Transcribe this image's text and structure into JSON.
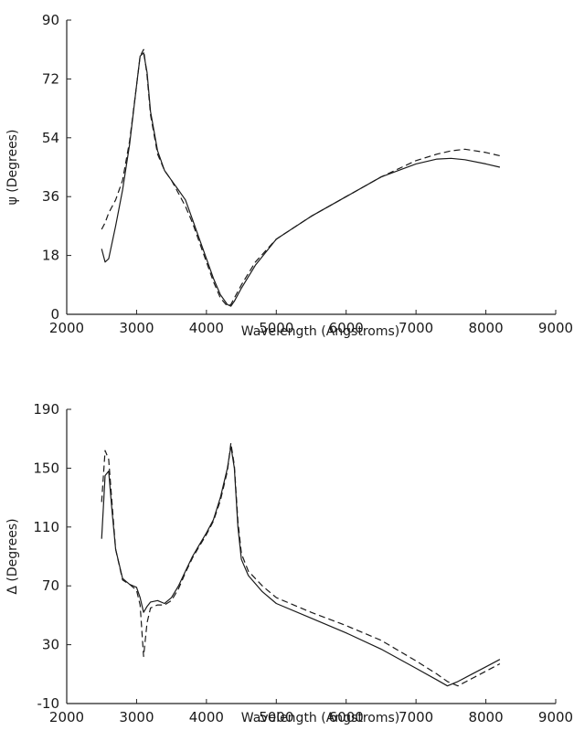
{
  "chart_data": [
    {
      "type": "line",
      "xlabel": "Wavelength (Angstroms)",
      "ylabel": "ψ (Degrees)",
      "xlim": [
        2000,
        9000
      ],
      "ylim": [
        0,
        90
      ],
      "xticks": [
        2000,
        3000,
        4000,
        5000,
        6000,
        7000,
        8000,
        9000
      ],
      "yticks": [
        0,
        18,
        36,
        54,
        72,
        90
      ],
      "grid": false,
      "series": [
        {
          "style": "solid",
          "x": [
            2500,
            2550,
            2600,
            2700,
            2800,
            2900,
            3000,
            3050,
            3100,
            3150,
            3200,
            3300,
            3400,
            3500,
            3600,
            3700,
            3800,
            3900,
            4000,
            4100,
            4200,
            4300,
            4350,
            4400,
            4500,
            4700,
            5000,
            5500,
            6000,
            6500,
            7000,
            7300,
            7500,
            7700,
            8000,
            8200
          ],
          "y": [
            20,
            16,
            17,
            27,
            38,
            52,
            70,
            79,
            80,
            74,
            62,
            50,
            44,
            41,
            38,
            35,
            29,
            23,
            17,
            11,
            6,
            3,
            2.5,
            4,
            8,
            15,
            23,
            30,
            36,
            42,
            46,
            47.5,
            47.7,
            47.3,
            46,
            45
          ]
        },
        {
          "style": "dashed",
          "x": [
            2500,
            2550,
            2600,
            2700,
            2800,
            2900,
            3000,
            3050,
            3100,
            3150,
            3200,
            3300,
            3400,
            3500,
            3600,
            3700,
            3800,
            3900,
            4000,
            4100,
            4200,
            4300,
            4350,
            4400,
            4500,
            4700,
            5000,
            5500,
            6000,
            6500,
            7000,
            7300,
            7500,
            7700,
            8000,
            8200
          ],
          "y": [
            26,
            28,
            31,
            35,
            41,
            53,
            70,
            79,
            81,
            73,
            61,
            49,
            44,
            41,
            37,
            33,
            28,
            22,
            16,
            10,
            5,
            2.5,
            3,
            5,
            9,
            16,
            23,
            30,
            36,
            42,
            47,
            49,
            50,
            50.5,
            49.5,
            48.5
          ]
        }
      ]
    },
    {
      "type": "line",
      "xlabel": "Wavelength (Angstroms)",
      "ylabel": "Δ (Degrees)",
      "xlim": [
        2000,
        9000
      ],
      "ylim": [
        -10,
        190
      ],
      "xticks": [
        2000,
        3000,
        4000,
        5000,
        6000,
        7000,
        8000,
        9000
      ],
      "yticks": [
        -10,
        30,
        70,
        110,
        150,
        190
      ],
      "grid": false,
      "series": [
        {
          "style": "solid",
          "x": [
            2500,
            2550,
            2600,
            2650,
            2700,
            2800,
            2900,
            3000,
            3050,
            3100,
            3150,
            3200,
            3300,
            3400,
            3500,
            3600,
            3700,
            3800,
            3900,
            4000,
            4100,
            4200,
            4300,
            4350,
            4400,
            4450,
            4500,
            4600,
            4800,
            5000,
            5500,
            6000,
            6500,
            7000,
            7300,
            7450,
            7600,
            7800,
            8000,
            8200
          ],
          "y": [
            102,
            145,
            148,
            120,
            95,
            75,
            71,
            69,
            62,
            52,
            56,
            59,
            60,
            58,
            62,
            70,
            80,
            90,
            98,
            106,
            115,
            130,
            150,
            165,
            150,
            110,
            88,
            77,
            66,
            58,
            48,
            38,
            27,
            14,
            6,
            2,
            5,
            10,
            15,
            20
          ]
        },
        {
          "style": "dashed",
          "x": [
            2500,
            2550,
            2600,
            2650,
            2700,
            2800,
            2900,
            3000,
            3050,
            3100,
            3150,
            3200,
            3300,
            3400,
            3500,
            3600,
            3700,
            3800,
            3900,
            4000,
            4100,
            4200,
            4300,
            4350,
            4400,
            4450,
            4500,
            4600,
            4800,
            5000,
            5500,
            6000,
            6500,
            7000,
            7300,
            7450,
            7600,
            7800,
            8000,
            8200
          ],
          "y": [
            127,
            162,
            156,
            125,
            95,
            74,
            71,
            67,
            57,
            22,
            45,
            55,
            57,
            57,
            60,
            68,
            79,
            89,
            97,
            105,
            114,
            128,
            148,
            167,
            152,
            114,
            92,
            80,
            70,
            62,
            52,
            43,
            33,
            19,
            10,
            5,
            2,
            7,
            12,
            17
          ]
        }
      ]
    }
  ]
}
